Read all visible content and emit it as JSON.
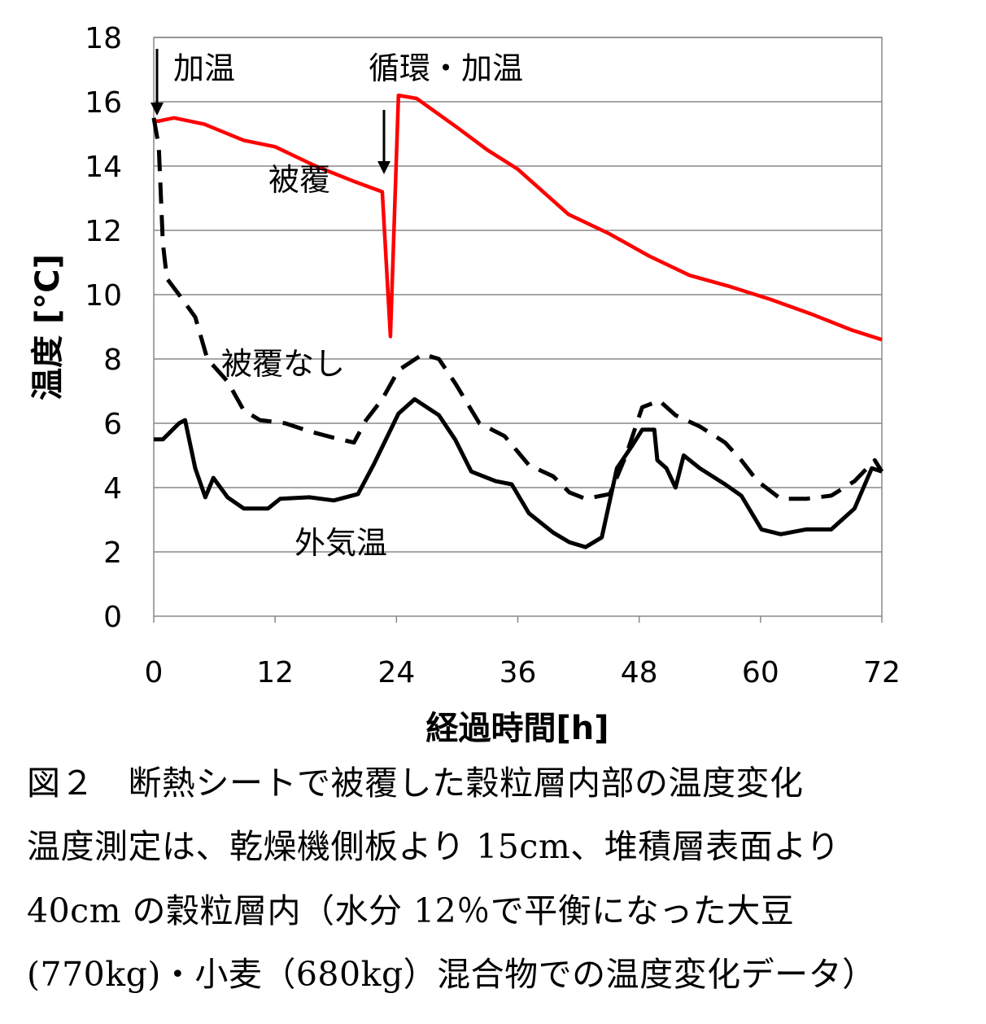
{
  "chart_data": {
    "type": "line",
    "title": "",
    "xlabel": "経過時間[h]",
    "ylabel": "温度 [°C]",
    "xlim": [
      0,
      72
    ],
    "ylim": [
      0,
      18
    ],
    "xticks": [
      0,
      12,
      24,
      36,
      48,
      60,
      72
    ],
    "yticks": [
      0,
      2,
      4,
      6,
      8,
      10,
      12,
      14,
      16,
      18
    ],
    "grid": "horizontal",
    "series": [
      {
        "name": "被覆",
        "color": "#ff0000",
        "style": "solid",
        "x": [
          0,
          0.5,
          2,
          5,
          8.9,
          12,
          16,
          20,
          22.6,
          23.4,
          24.2,
          26,
          30,
          33,
          36,
          41,
          45,
          49,
          53,
          57,
          61,
          65,
          69,
          72
        ],
        "y": [
          15.4,
          15.4,
          15.5,
          15.3,
          14.8,
          14.6,
          14.0,
          13.5,
          13.2,
          8.7,
          16.2,
          16.1,
          15.2,
          14.5,
          13.9,
          12.5,
          11.9,
          11.2,
          10.6,
          10.25,
          9.85,
          9.4,
          8.9,
          8.6
        ]
      },
      {
        "name": "被覆なし",
        "color": "#000000",
        "style": "dashed",
        "x": [
          0,
          0.5,
          0.9,
          1.3,
          2.5,
          4.1,
          5.3,
          7.3,
          8.9,
          10.5,
          13,
          15.4,
          17.8,
          19.8,
          21,
          22.6,
          24.2,
          26.6,
          28.2,
          29.8,
          32.2,
          34.7,
          37.1,
          39.5,
          41.1,
          42.7,
          45.1,
          46.7,
          48.3,
          50,
          51.6,
          54,
          56.5,
          58.1,
          59.7,
          62,
          64.5,
          67,
          69.3,
          71.3,
          72
        ],
        "y": [
          15.5,
          14.6,
          11.6,
          10.5,
          10.0,
          9.3,
          8.0,
          7.3,
          6.4,
          6.1,
          6.0,
          5.75,
          5.55,
          5.4,
          6.1,
          6.75,
          7.65,
          8.15,
          8.0,
          7.25,
          6.0,
          5.6,
          4.7,
          4.35,
          3.85,
          3.65,
          3.8,
          5.0,
          6.5,
          6.7,
          6.25,
          5.9,
          5.4,
          4.85,
          4.2,
          3.65,
          3.65,
          3.75,
          4.2,
          4.85,
          4.5
        ]
      },
      {
        "name": "外気温",
        "color": "#000000",
        "style": "solid",
        "x": [
          0,
          0.9,
          2.5,
          3.1,
          4.1,
          5.1,
          5.9,
          7.3,
          8.9,
          11.3,
          12.5,
          15.4,
          17.8,
          20.2,
          21.8,
          24.2,
          25.8,
          28.2,
          29.8,
          31.4,
          33.8,
          35.4,
          37.1,
          39.5,
          41.1,
          42.7,
          44.3,
          45.8,
          47.4,
          48.3,
          49.5,
          49.8,
          50.7,
          51.6,
          52.4,
          54,
          56.5,
          58.1,
          60.1,
          62,
          64.5,
          67,
          69.3,
          71,
          72
        ],
        "y": [
          5.5,
          5.5,
          6.0,
          6.1,
          4.6,
          3.7,
          4.3,
          3.7,
          3.35,
          3.35,
          3.65,
          3.7,
          3.6,
          3.8,
          4.75,
          6.3,
          6.75,
          6.25,
          5.5,
          4.5,
          4.2,
          4.1,
          3.2,
          2.6,
          2.3,
          2.15,
          2.45,
          4.6,
          5.35,
          5.8,
          5.8,
          4.85,
          4.6,
          4.0,
          5.0,
          4.6,
          4.1,
          3.75,
          2.7,
          2.55,
          2.7,
          2.7,
          3.35,
          4.6,
          4.5
        ]
      }
    ],
    "annotations": [
      {
        "text": "加温",
        "x": 0,
        "arrow_to_y": 15.4
      },
      {
        "text": "循環・加温",
        "x": 23.2,
        "arrow_to_y": 13.5
      }
    ],
    "series_labels": [
      "被覆",
      "被覆なし",
      "外気温"
    ]
  },
  "caption": {
    "lines": [
      "図２　断熱シートで被覆した穀粒層内部の温度変化",
      "温度測定は、乾燥機側板より 15cm、堆積層表面より",
      "40cm の穀粒層内（水分 12％で平衡になった大豆",
      "(770kg)・小麦（680kg）混合物での温度変化データ）"
    ]
  }
}
